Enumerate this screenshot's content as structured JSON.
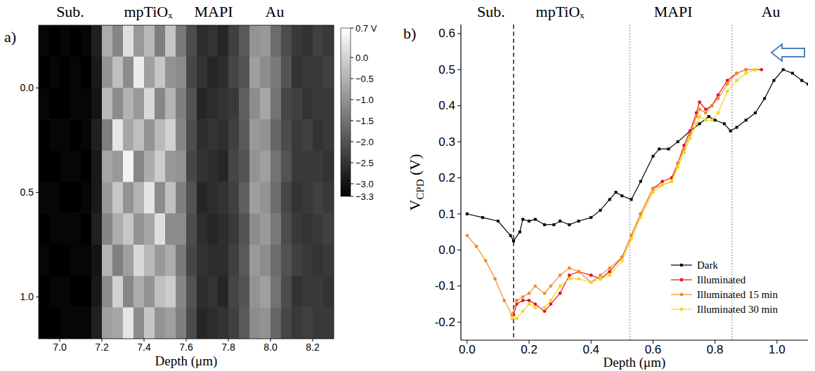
{
  "chart_data": [
    {
      "type": "heatmap",
      "panel": "a)",
      "xlabel": "Depth (μm)",
      "annotations": [
        {
          "text": "Sub.",
          "x": 7.05
        },
        {
          "text": "mpTiOₓ",
          "x": 7.42
        },
        {
          "text": "MAPI",
          "x": 7.73
        },
        {
          "text": "Au",
          "x": 8.02
        }
      ],
      "xlim": [
        6.9,
        8.3
      ],
      "ylim": [
        -0.3,
        1.2
      ],
      "xticks": [
        {
          "value": 7.0,
          "label": "7.0"
        },
        7.2,
        7.4,
        7.6,
        7.8,
        {
          "value": 8.0,
          "label": "8.0"
        },
        8.2
      ],
      "yticks": [
        {
          "value": 0,
          "label": "0.0"
        },
        0.5,
        {
          "value": 1.0,
          "label": "1.0"
        }
      ],
      "x": [
        6.925,
        6.975,
        7.025,
        7.075,
        7.125,
        7.175,
        7.225,
        7.275,
        7.325,
        7.375,
        7.425,
        7.475,
        7.525,
        7.575,
        7.625,
        7.675,
        7.725,
        7.775,
        7.825,
        7.875,
        7.925,
        7.975,
        8.025,
        8.075,
        8.125,
        8.175,
        8.225,
        8.275
      ],
      "y": [
        -0.225,
        -0.075,
        0.075,
        0.225,
        0.375,
        0.525,
        0.675,
        0.825,
        0.975,
        1.125
      ],
      "cells": [
        [
          -3.2,
          -3.3,
          -3.2,
          -3.3,
          -3.2,
          -2.8,
          -0.6,
          -1.2,
          0.2,
          -0.9,
          -0.4,
          -1.3,
          -0.2,
          -1.4,
          -2.1,
          -2.6,
          -2.5,
          -2.7,
          -2.3,
          -1.9,
          -1.0,
          -0.9,
          -1.6,
          -2.1,
          -2.4,
          -2.5,
          -2.3,
          -2.4
        ],
        [
          -3.3,
          -3.2,
          -3.3,
          -3.2,
          -3.3,
          -2.9,
          -1.0,
          -0.3,
          -1.1,
          0.4,
          -0.8,
          -0.2,
          -1.0,
          -1.1,
          -2.2,
          -2.5,
          -2.7,
          -2.6,
          -2.2,
          -2.0,
          -0.8,
          -1.1,
          -1.4,
          -2.0,
          -2.5,
          -2.4,
          -2.4,
          -2.3
        ],
        [
          -3.2,
          -3.3,
          -3.3,
          -3.2,
          -3.2,
          -3.0,
          -0.4,
          -1.1,
          -0.5,
          -0.9,
          0.1,
          -1.2,
          -0.5,
          -1.3,
          -2.0,
          -2.7,
          -2.6,
          -2.5,
          -2.4,
          -1.8,
          -1.1,
          -0.7,
          -1.5,
          -2.2,
          -2.3,
          -2.5,
          -2.4,
          -2.4
        ],
        [
          -3.3,
          -3.2,
          -3.2,
          -3.3,
          -3.2,
          -2.8,
          -1.3,
          0.3,
          -0.7,
          -0.3,
          -1.0,
          -0.4,
          0.0,
          -1.2,
          -2.1,
          -2.6,
          -2.5,
          -2.6,
          -2.3,
          -1.9,
          -0.9,
          -1.0,
          -1.7,
          -2.1,
          -2.4,
          -2.3,
          -2.5,
          -2.4
        ],
        [
          -3.3,
          -3.3,
          -3.2,
          -3.2,
          -3.3,
          -2.9,
          -0.7,
          -0.9,
          0.5,
          -1.2,
          -0.6,
          -0.1,
          -0.9,
          -1.0,
          -2.2,
          -2.5,
          -2.6,
          -2.7,
          -2.2,
          -2.0,
          -1.0,
          -0.8,
          -1.5,
          -2.0,
          -2.4,
          -2.4,
          -2.4,
          -2.5
        ],
        [
          -3.2,
          -3.2,
          -3.3,
          -3.3,
          -3.2,
          -2.9,
          -0.9,
          -0.2,
          -1.0,
          -0.5,
          0.3,
          -1.1,
          -0.3,
          -1.3,
          -2.0,
          -2.7,
          -2.6,
          -2.5,
          -2.3,
          -1.8,
          -0.8,
          -1.0,
          -1.6,
          -2.2,
          -2.5,
          -2.4,
          -2.3,
          -2.4
        ],
        [
          -3.3,
          -3.2,
          -3.2,
          -3.2,
          -3.3,
          -2.8,
          -1.2,
          -0.6,
          -0.2,
          -1.0,
          -0.7,
          0.2,
          -1.1,
          -1.1,
          -2.1,
          -2.6,
          -2.7,
          -2.6,
          -2.4,
          -2.0,
          -1.1,
          -0.9,
          -1.4,
          -2.1,
          -2.4,
          -2.5,
          -2.4,
          -2.3
        ],
        [
          -3.2,
          -3.3,
          -3.3,
          -3.2,
          -3.2,
          -3.0,
          -0.5,
          -1.3,
          -0.8,
          0.1,
          -0.4,
          -0.9,
          -0.6,
          -1.4,
          -2.2,
          -2.5,
          -2.6,
          -2.6,
          -2.3,
          -1.9,
          -0.9,
          -1.1,
          -1.6,
          -2.0,
          -2.3,
          -2.4,
          -2.5,
          -2.4
        ],
        [
          -3.3,
          -3.2,
          -3.2,
          -3.3,
          -3.3,
          -2.9,
          -1.1,
          0.0,
          -1.2,
          -0.6,
          -1.0,
          -0.3,
          -0.1,
          -1.2,
          -2.0,
          -2.6,
          -2.5,
          -2.7,
          -2.2,
          -2.0,
          -1.0,
          -0.8,
          -1.5,
          -2.1,
          -2.5,
          -2.4,
          -2.4,
          -2.5
        ],
        [
          -3.3,
          -3.3,
          -3.2,
          -3.2,
          -3.2,
          -2.8,
          -0.8,
          -0.7,
          0.3,
          -1.1,
          -0.2,
          -1.0,
          -0.8,
          -1.3,
          -2.1,
          -2.7,
          -2.6,
          -2.5,
          -2.3,
          -1.9,
          -1.1,
          -1.0,
          -1.7,
          -2.2,
          -2.4,
          -2.3,
          -2.4,
          -2.4
        ]
      ],
      "colorbar": {
        "range": [
          -3.3,
          0.7
        ],
        "ticks": [
          {
            "value": 0.7,
            "label": "0.7 V"
          },
          {
            "value": 0,
            "label": "0.0"
          },
          {
            "value": -0.5,
            "label": "−0.5"
          },
          {
            "value": -1.0,
            "label": "−1.0"
          },
          {
            "value": -1.5,
            "label": "−1.5"
          },
          {
            "value": -2.0,
            "label": "−2.0"
          },
          {
            "value": -2.5,
            "label": "−2.5"
          },
          {
            "value": -3.0,
            "label": "−3.0"
          },
          {
            "value": -3.3,
            "label": "−3.3"
          }
        ]
      }
    },
    {
      "type": "line",
      "panel": "b)",
      "xlabel": "Depth (μm)",
      "ylabel": {
        "text": "V",
        "subscript": "CPD",
        "unit": " (V)"
      },
      "annotations": [
        {
          "text": "Sub.",
          "x": 0.077
        },
        {
          "text": "mpTiOₓ",
          "x": 0.3
        },
        {
          "text": "MAPI",
          "x": 0.665
        },
        {
          "text": "Au",
          "x": 0.98
        }
      ],
      "vlines": [
        {
          "x": 0.15,
          "line_style": "dashed"
        },
        {
          "x": 0.525,
          "line_style": "dotted"
        },
        {
          "x": 0.855,
          "line_style": "dotted"
        }
      ],
      "xlim": [
        -0.02,
        1.1
      ],
      "ylim": [
        -0.25,
        0.625
      ],
      "xticks": [
        {
          "value": 0,
          "label": "0.0"
        },
        0.2,
        0.4,
        0.6,
        0.8,
        {
          "value": 1.0,
          "label": "1.0"
        }
      ],
      "yticks": [
        -0.2,
        -0.1,
        {
          "value": 0,
          "label": "0.0"
        },
        0.1,
        0.2,
        0.3,
        0.4,
        0.5,
        0.6
      ],
      "legend": "lower right",
      "series": [
        {
          "name": "Dark",
          "color": "#000000",
          "marker": "square",
          "line_style": "solid",
          "x": [
            0,
            0.05,
            0.1,
            0.14,
            0.15,
            0.17,
            0.18,
            0.2,
            0.22,
            0.25,
            0.28,
            0.3,
            0.33,
            0.36,
            0.4,
            0.43,
            0.46,
            0.48,
            0.5,
            0.53,
            0.56,
            0.6,
            0.62,
            0.65,
            0.68,
            0.72,
            0.75,
            0.78,
            0.8,
            0.83,
            0.85,
            0.87,
            0.9,
            0.93,
            0.96,
            0.99,
            1.02,
            1.05,
            1.08,
            1.1
          ],
          "values": [
            0.1,
            0.09,
            0.08,
            0.04,
            0.025,
            0.05,
            0.085,
            0.08,
            0.085,
            0.07,
            0.07,
            0.08,
            0.07,
            0.08,
            0.09,
            0.11,
            0.14,
            0.16,
            0.15,
            0.14,
            0.19,
            0.26,
            0.28,
            0.28,
            0.3,
            0.33,
            0.35,
            0.37,
            0.36,
            0.35,
            0.33,
            0.34,
            0.36,
            0.38,
            0.42,
            0.47,
            0.5,
            0.49,
            0.47,
            0.46
          ]
        },
        {
          "name": "Illuminated",
          "color": "#e8141b",
          "marker": "circle",
          "line_style": "solid",
          "x": [
            0.15,
            0.16,
            0.18,
            0.2,
            0.22,
            0.25,
            0.27,
            0.3,
            0.33,
            0.36,
            0.4,
            0.43,
            0.46,
            0.5,
            0.53,
            0.56,
            0.6,
            0.63,
            0.66,
            0.68,
            0.7,
            0.72,
            0.74,
            0.75,
            0.77,
            0.79,
            0.81,
            0.84,
            0.87,
            0.9,
            0.93,
            0.95
          ],
          "values": [
            -0.18,
            -0.15,
            -0.14,
            -0.14,
            -0.15,
            -0.17,
            -0.15,
            -0.12,
            -0.07,
            -0.06,
            -0.07,
            -0.08,
            -0.06,
            -0.02,
            0.04,
            0.1,
            0.17,
            0.19,
            0.2,
            0.24,
            0.29,
            0.33,
            0.38,
            0.41,
            0.39,
            0.4,
            0.43,
            0.47,
            0.49,
            0.5,
            0.5,
            0.5
          ]
        },
        {
          "name": "Illuminated 15 min",
          "color": "#f28c28",
          "marker": "circle",
          "line_style": "solid",
          "x": [
            0,
            0.03,
            0.06,
            0.09,
            0.12,
            0.145,
            0.16,
            0.18,
            0.2,
            0.22,
            0.25,
            0.27,
            0.3,
            0.33,
            0.36,
            0.4,
            0.43,
            0.46,
            0.5,
            0.53,
            0.56,
            0.6,
            0.63,
            0.66,
            0.68,
            0.7,
            0.72,
            0.74,
            0.75,
            0.77,
            0.79,
            0.81,
            0.84,
            0.87,
            0.9,
            0.93
          ],
          "values": [
            0.04,
            0.01,
            -0.03,
            -0.08,
            -0.14,
            -0.18,
            -0.14,
            -0.13,
            -0.12,
            -0.1,
            -0.12,
            -0.1,
            -0.07,
            -0.05,
            -0.06,
            -0.09,
            -0.07,
            -0.05,
            -0.02,
            0.04,
            0.1,
            0.17,
            0.18,
            0.19,
            0.24,
            0.28,
            0.32,
            0.37,
            0.39,
            0.38,
            0.4,
            0.42,
            0.46,
            0.49,
            0.5,
            0.5
          ]
        },
        {
          "name": "Illuminated 30 min",
          "color": "#f2d81a",
          "marker": "circle",
          "line_style": "solid",
          "x": [
            0.145,
            0.16,
            0.18,
            0.2,
            0.22,
            0.25,
            0.27,
            0.3,
            0.33,
            0.36,
            0.4,
            0.43,
            0.46,
            0.5,
            0.53,
            0.56,
            0.6,
            0.63,
            0.66,
            0.68,
            0.7,
            0.72,
            0.74,
            0.75,
            0.77,
            0.79,
            0.81,
            0.84,
            0.87,
            0.9,
            0.93
          ],
          "values": [
            -0.19,
            -0.19,
            -0.17,
            -0.15,
            -0.16,
            -0.16,
            -0.14,
            -0.1,
            -0.08,
            -0.08,
            -0.09,
            -0.08,
            -0.07,
            -0.03,
            0.03,
            0.09,
            0.16,
            0.18,
            0.19,
            0.23,
            0.27,
            0.31,
            0.35,
            0.37,
            0.36,
            0.36,
            0.38,
            0.44,
            0.47,
            0.49,
            0.5
          ]
        }
      ]
    }
  ]
}
